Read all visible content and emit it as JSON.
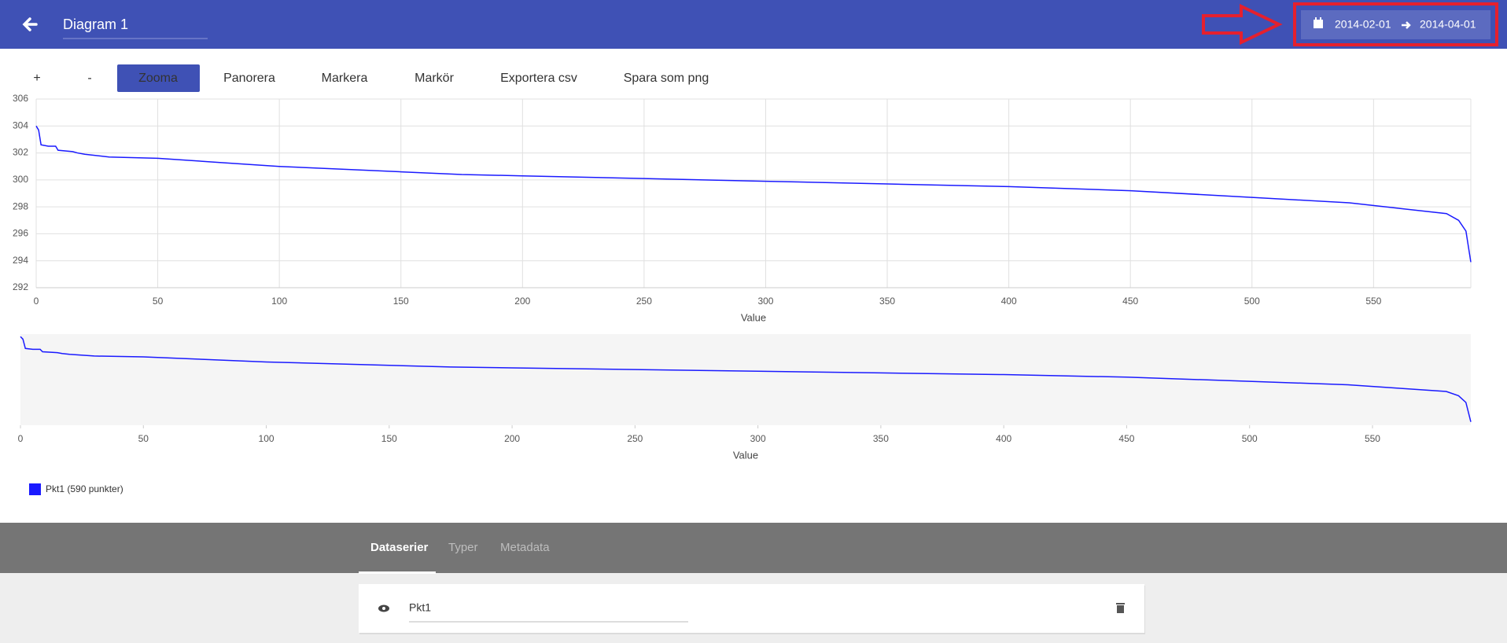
{
  "header": {
    "title": "Diagram 1",
    "date_from": "2014-02-01",
    "date_to": "2014-04-01"
  },
  "toolbar": [
    "+",
    "-",
    "Zooma",
    "Panorera",
    "Markera",
    "Markör",
    "Exportera csv",
    "Spara som png"
  ],
  "chart_data": [
    {
      "type": "line",
      "x_label": "Value",
      "xlim": [
        0,
        590
      ],
      "ylim": [
        292,
        306
      ],
      "xticks": [
        0,
        50,
        100,
        150,
        200,
        250,
        300,
        350,
        400,
        450,
        500,
        550
      ],
      "yticks": [
        292,
        294,
        296,
        298,
        300,
        302,
        304,
        306
      ],
      "grid": true,
      "x": [
        0,
        1,
        2,
        5,
        8,
        9,
        15,
        17,
        20,
        30,
        50,
        75,
        100,
        150,
        175,
        200,
        250,
        300,
        350,
        400,
        450,
        500,
        540,
        560,
        580,
        585,
        588,
        590
      ],
      "series": [
        {
          "name": "Pkt1 (590 punkter)",
          "color": "#1a1aff",
          "values": [
            304,
            303.7,
            302.6,
            302.5,
            302.5,
            302.2,
            302.1,
            302.0,
            301.9,
            301.7,
            301.6,
            301.3,
            301.0,
            300.6,
            300.4,
            300.3,
            300.1,
            299.9,
            299.7,
            299.5,
            299.2,
            298.7,
            298.3,
            297.9,
            297.5,
            297.0,
            296.2,
            293.9
          ]
        }
      ]
    },
    {
      "type": "line",
      "x_label": "Value",
      "xlim": [
        0,
        590
      ],
      "ylim": [
        293.5,
        304.3
      ],
      "xticks": [
        0,
        50,
        100,
        150,
        200,
        250,
        300,
        350,
        400,
        450,
        500,
        550
      ],
      "grid": false,
      "x": [
        0,
        1,
        2,
        5,
        8,
        9,
        15,
        17,
        20,
        30,
        50,
        75,
        100,
        150,
        175,
        200,
        250,
        300,
        350,
        400,
        450,
        500,
        540,
        560,
        580,
        585,
        588,
        590
      ],
      "series": [
        {
          "name": "Pkt1 (590 punkter)",
          "color": "#1a1aff",
          "values": [
            304,
            303.7,
            302.6,
            302.5,
            302.5,
            302.2,
            302.1,
            302.0,
            301.9,
            301.7,
            301.6,
            301.3,
            301.0,
            300.6,
            300.4,
            300.3,
            300.1,
            299.9,
            299.7,
            299.5,
            299.2,
            298.7,
            298.3,
            297.9,
            297.5,
            297.0,
            296.2,
            293.9
          ]
        }
      ]
    }
  ],
  "tabs": [
    "Dataserier",
    "Typer",
    "Metadata"
  ],
  "series_row": {
    "name": "Pkt1"
  }
}
